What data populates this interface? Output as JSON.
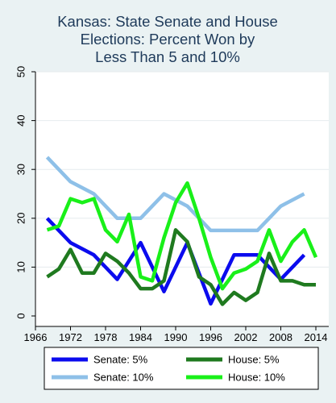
{
  "chart_data": {
    "type": "line",
    "title": [
      "Kansas: State Senate and House",
      "Elections: Percent Won by",
      "Less Than 5 and 10%"
    ],
    "xlabel": "",
    "ylabel": "",
    "xlim": [
      1966,
      2014
    ],
    "ylim": [
      0,
      50
    ],
    "xticks": [
      "1966",
      "1972",
      "1978",
      "1984",
      "1990",
      "1996",
      "2002",
      "2008",
      "2014"
    ],
    "yticks": [
      "0",
      "10",
      "20",
      "30",
      "40",
      "50"
    ],
    "grid": true,
    "legend_position": "bottom",
    "series": [
      {
        "name": "Senate: 5%",
        "color": "#0b0bee",
        "x": [
          1968,
          1972,
          1976,
          1980,
          1984,
          1988,
          1992,
          1996,
          2000,
          2004,
          2008,
          2012
        ],
        "y": [
          20,
          15,
          12.5,
          7.5,
          15,
          5,
          15,
          2.5,
          12.5,
          12.5,
          7.5,
          12.5
        ]
      },
      {
        "name": "Senate: 10%",
        "color": "#8ec0e8",
        "x": [
          1968,
          1972,
          1976,
          1980,
          1984,
          1988,
          1992,
          1996,
          2000,
          2004,
          2008,
          2012
        ],
        "y": [
          32.5,
          27.5,
          25,
          20,
          20,
          25,
          22.5,
          17.5,
          17.5,
          17.5,
          22.5,
          25
        ]
      },
      {
        "name": "House: 5%",
        "color": "#1f7a1f",
        "x": [
          1968,
          1970,
          1972,
          1974,
          1976,
          1978,
          1980,
          1982,
          1984,
          1986,
          1988,
          1990,
          1992,
          1994,
          1996,
          1998,
          2000,
          2002,
          2004,
          2006,
          2008,
          2010,
          2012,
          2014
        ],
        "y": [
          8,
          9.6,
          13.6,
          8.8,
          8.8,
          12.8,
          11.2,
          8.8,
          5.6,
          5.6,
          7.2,
          17.6,
          15.2,
          8,
          6.4,
          2.4,
          4.8,
          3.2,
          4.8,
          12.8,
          7.2,
          7.2,
          6.4,
          6.4
        ]
      },
      {
        "name": "House: 10%",
        "color": "#19f019",
        "x": [
          1968,
          1970,
          1972,
          1974,
          1976,
          1978,
          1980,
          1982,
          1984,
          1986,
          1988,
          1990,
          1992,
          1994,
          1996,
          1998,
          2000,
          2002,
          2004,
          2006,
          2008,
          2010,
          2012,
          2014
        ],
        "y": [
          17.6,
          18.4,
          24,
          23.2,
          24,
          17.6,
          15.2,
          20.8,
          8,
          7.2,
          16,
          23.2,
          27.2,
          20,
          12,
          5.6,
          8.8,
          9.6,
          11.2,
          17.6,
          11.2,
          15.2,
          17.6,
          12
        ]
      }
    ]
  }
}
